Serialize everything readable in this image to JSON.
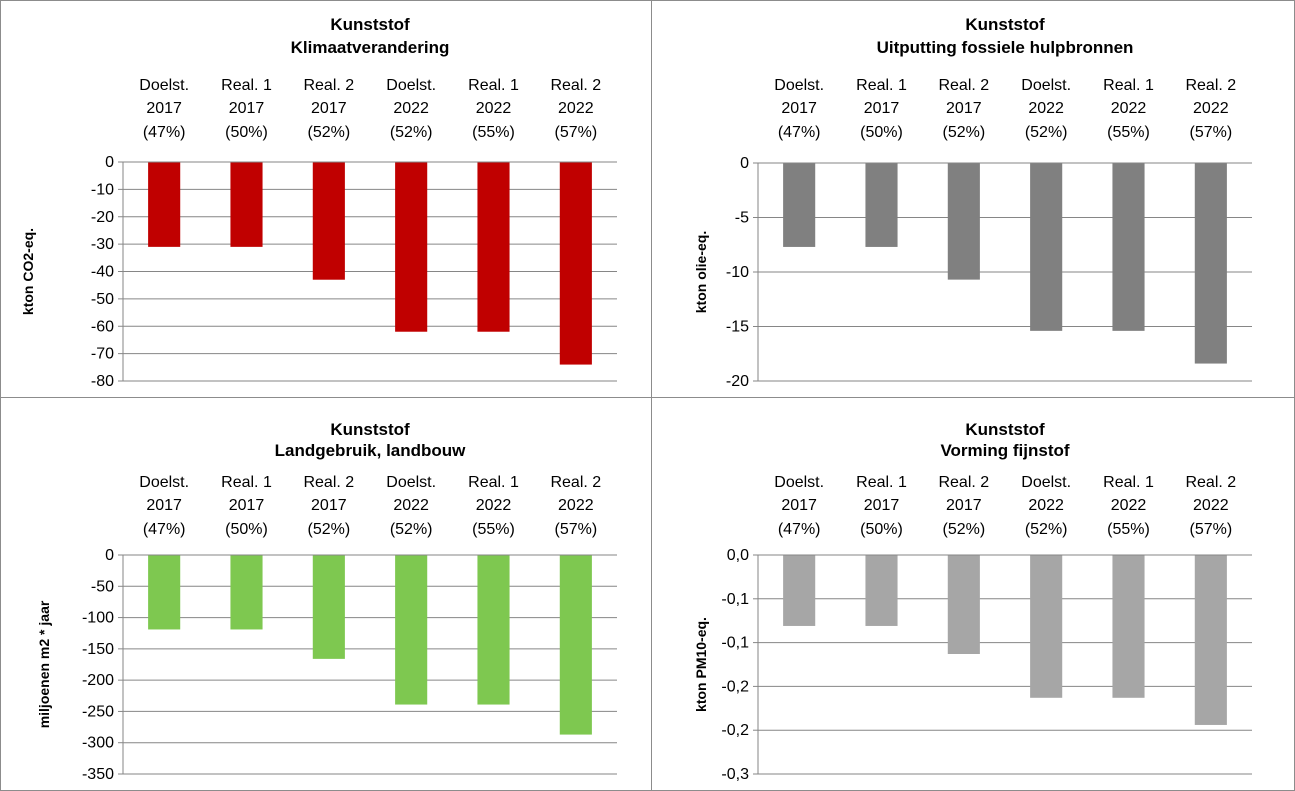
{
  "colors": {
    "axis": "#868686",
    "gridline": "#868686",
    "border": "#8c8c8c"
  },
  "chart_data": [
    {
      "type": "bar",
      "title": "Kunststof",
      "subtitle": "Klimaatverandering",
      "categories": [
        [
          "Doelst.",
          "2017",
          "(47%)"
        ],
        [
          "Real. 1",
          "2017",
          "(50%)"
        ],
        [
          "Real. 2",
          "2017",
          "(52%)"
        ],
        [
          "Doelst.",
          "2022",
          "(52%)"
        ],
        [
          "Real. 1",
          "2022",
          "(55%)"
        ],
        [
          "Real. 2",
          "2022",
          "(57%)"
        ]
      ],
      "values": [
        -31,
        -31,
        -43,
        -62,
        -62,
        -74
      ],
      "xlabel": "",
      "ylabel": "kton CO2-eq.",
      "ylim": [
        -80,
        0
      ],
      "yticks": [
        0,
        -10,
        -20,
        -30,
        -40,
        -50,
        -60,
        -70,
        -80
      ],
      "ytick_labels": [
        "0",
        "-10",
        "-20",
        "-30",
        "-40",
        "-50",
        "-60",
        "-70",
        "-80"
      ],
      "color": "#c00000",
      "grid": true,
      "legend": "none"
    },
    {
      "type": "bar",
      "title": "Kunststof",
      "subtitle": "Uitputting fossiele hulpbronnen",
      "categories": [
        [
          "Doelst.",
          "2017",
          "(47%)"
        ],
        [
          "Real. 1",
          "2017",
          "(50%)"
        ],
        [
          "Real. 2",
          "2017",
          "(52%)"
        ],
        [
          "Doelst.",
          "2022",
          "(52%)"
        ],
        [
          "Real. 1",
          "2022",
          "(55%)"
        ],
        [
          "Real. 2",
          "2022",
          "(57%)"
        ]
      ],
      "values": [
        -7.7,
        -7.7,
        -10.7,
        -15.4,
        -15.4,
        -18.4
      ],
      "xlabel": "",
      "ylabel": "kton olie-eq.",
      "ylim": [
        -20,
        0
      ],
      "yticks": [
        0,
        -5,
        -10,
        -15,
        -20
      ],
      "ytick_labels": [
        "0",
        "-5",
        "-10",
        "-15",
        "-20"
      ],
      "color": "#808080",
      "grid": true,
      "legend": "none"
    },
    {
      "type": "bar",
      "title": "Kunststof",
      "subtitle": "Landgebruik, landbouw",
      "categories": [
        [
          "Doelst.",
          "2017",
          "(47%)"
        ],
        [
          "Real. 1",
          "2017",
          "(50%)"
        ],
        [
          "Real. 2",
          "2017",
          "(52%)"
        ],
        [
          "Doelst.",
          "2022",
          "(52%)"
        ],
        [
          "Real. 1",
          "2022",
          "(55%)"
        ],
        [
          "Real. 2",
          "2022",
          "(57%)"
        ]
      ],
      "values": [
        -119,
        -119,
        -166,
        -239,
        -239,
        -287
      ],
      "xlabel": "",
      "ylabel": "miljoenen m2 * jaar",
      "ylim": [
        -350,
        0
      ],
      "yticks": [
        0,
        -50,
        -100,
        -150,
        -200,
        -250,
        -300,
        -350
      ],
      "ytick_labels": [
        "0",
        "-50",
        "-100",
        "-150",
        "-200",
        "-250",
        "-300",
        "-350"
      ],
      "color": "#7ec850",
      "grid": true,
      "legend": "none"
    },
    {
      "type": "bar",
      "title": "Kunststof",
      "subtitle": "Vorming fijnstof",
      "categories": [
        [
          "Doelst.",
          "2017",
          "(47%)"
        ],
        [
          "Real. 1",
          "2017",
          "(50%)"
        ],
        [
          "Real. 2",
          "2017",
          "(52%)"
        ],
        [
          "Doelst.",
          "2022",
          "(52%)"
        ],
        [
          "Real. 1",
          "2022",
          "(55%)"
        ],
        [
          "Real. 2",
          "2022",
          "(57%)"
        ]
      ],
      "values": [
        -0.081,
        -0.081,
        -0.113,
        -0.163,
        -0.163,
        -0.194
      ],
      "xlabel": "",
      "ylabel": "kton PM10-eq.",
      "ylim": [
        -0.25,
        0
      ],
      "yticks": [
        0,
        -0.05,
        -0.1,
        -0.15,
        -0.2,
        -0.25
      ],
      "ytick_labels": [
        "0,0",
        "-0,1",
        "-0,1",
        "-0,2",
        "-0,2",
        "-0,3"
      ],
      "color": "#a6a6a6",
      "grid": true,
      "legend": "none"
    }
  ]
}
